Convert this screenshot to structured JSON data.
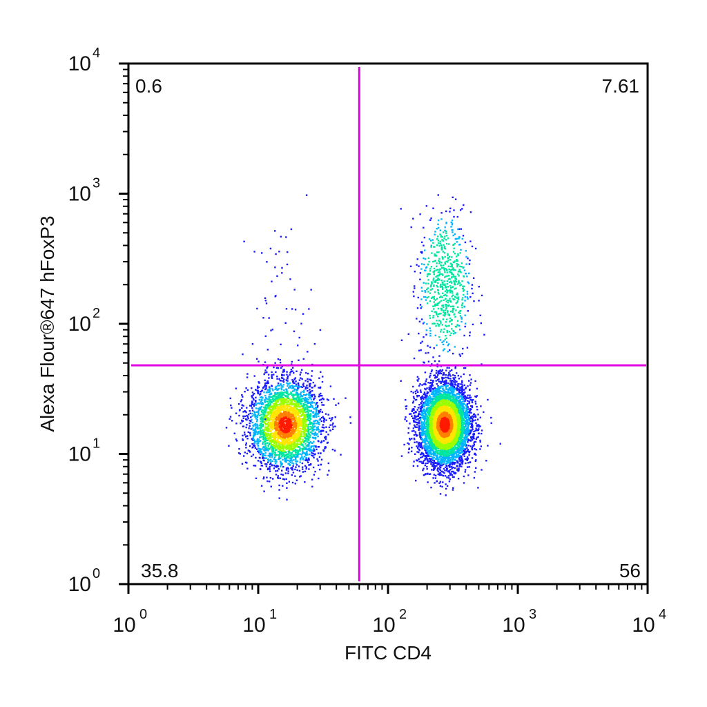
{
  "chart_data": {
    "type": "scatter",
    "title": "",
    "xlabel": "FITC CD4",
    "ylabel": "Alexa Flour®647 hFoxP3",
    "x_scale": "log",
    "y_scale": "log",
    "xlim": [
      1,
      10000
    ],
    "ylim": [
      1,
      10000
    ],
    "x_ticks": [
      {
        "base": "10",
        "exp": "0"
      },
      {
        "base": "10",
        "exp": "1"
      },
      {
        "base": "10",
        "exp": "2"
      },
      {
        "base": "10",
        "exp": "3"
      },
      {
        "base": "10",
        "exp": "4"
      }
    ],
    "y_ticks": [
      {
        "base": "10",
        "exp": "0"
      },
      {
        "base": "10",
        "exp": "1"
      },
      {
        "base": "10",
        "exp": "2"
      },
      {
        "base": "10",
        "exp": "3"
      },
      {
        "base": "10",
        "exp": "4"
      }
    ],
    "gate": {
      "x": 60,
      "y": 48,
      "color": "#e000e0"
    },
    "quadrant_percentages": {
      "upper_left": "0.6",
      "upper_right": "7.61",
      "lower_left": "35.8",
      "lower_right": "56"
    },
    "density_colormap": [
      "#1a1aff",
      "#00b4ff",
      "#00e6a0",
      "#9aff00",
      "#ffe600",
      "#ff8000",
      "#ff1a00"
    ],
    "populations": [
      {
        "name": "",
        "center": [
          16,
          17
        ],
        "spread_log10": [
          0.14,
          0.17
        ],
        "fraction": 0.358
      },
      {
        "name": "",
        "center": [
          270,
          17
        ],
        "spread_log10": [
          0.1,
          0.16
        ],
        "fraction": 0.56
      },
      {
        "name": "",
        "center": [
          270,
          200
        ],
        "spread_log10": [
          0.1,
          0.28
        ],
        "fraction": 0.076
      },
      {
        "name": "",
        "center": [
          15,
          150
        ],
        "spread_log10": [
          0.12,
          0.3
        ],
        "fraction": 0.006
      }
    ],
    "grid": false,
    "legend": "none"
  }
}
